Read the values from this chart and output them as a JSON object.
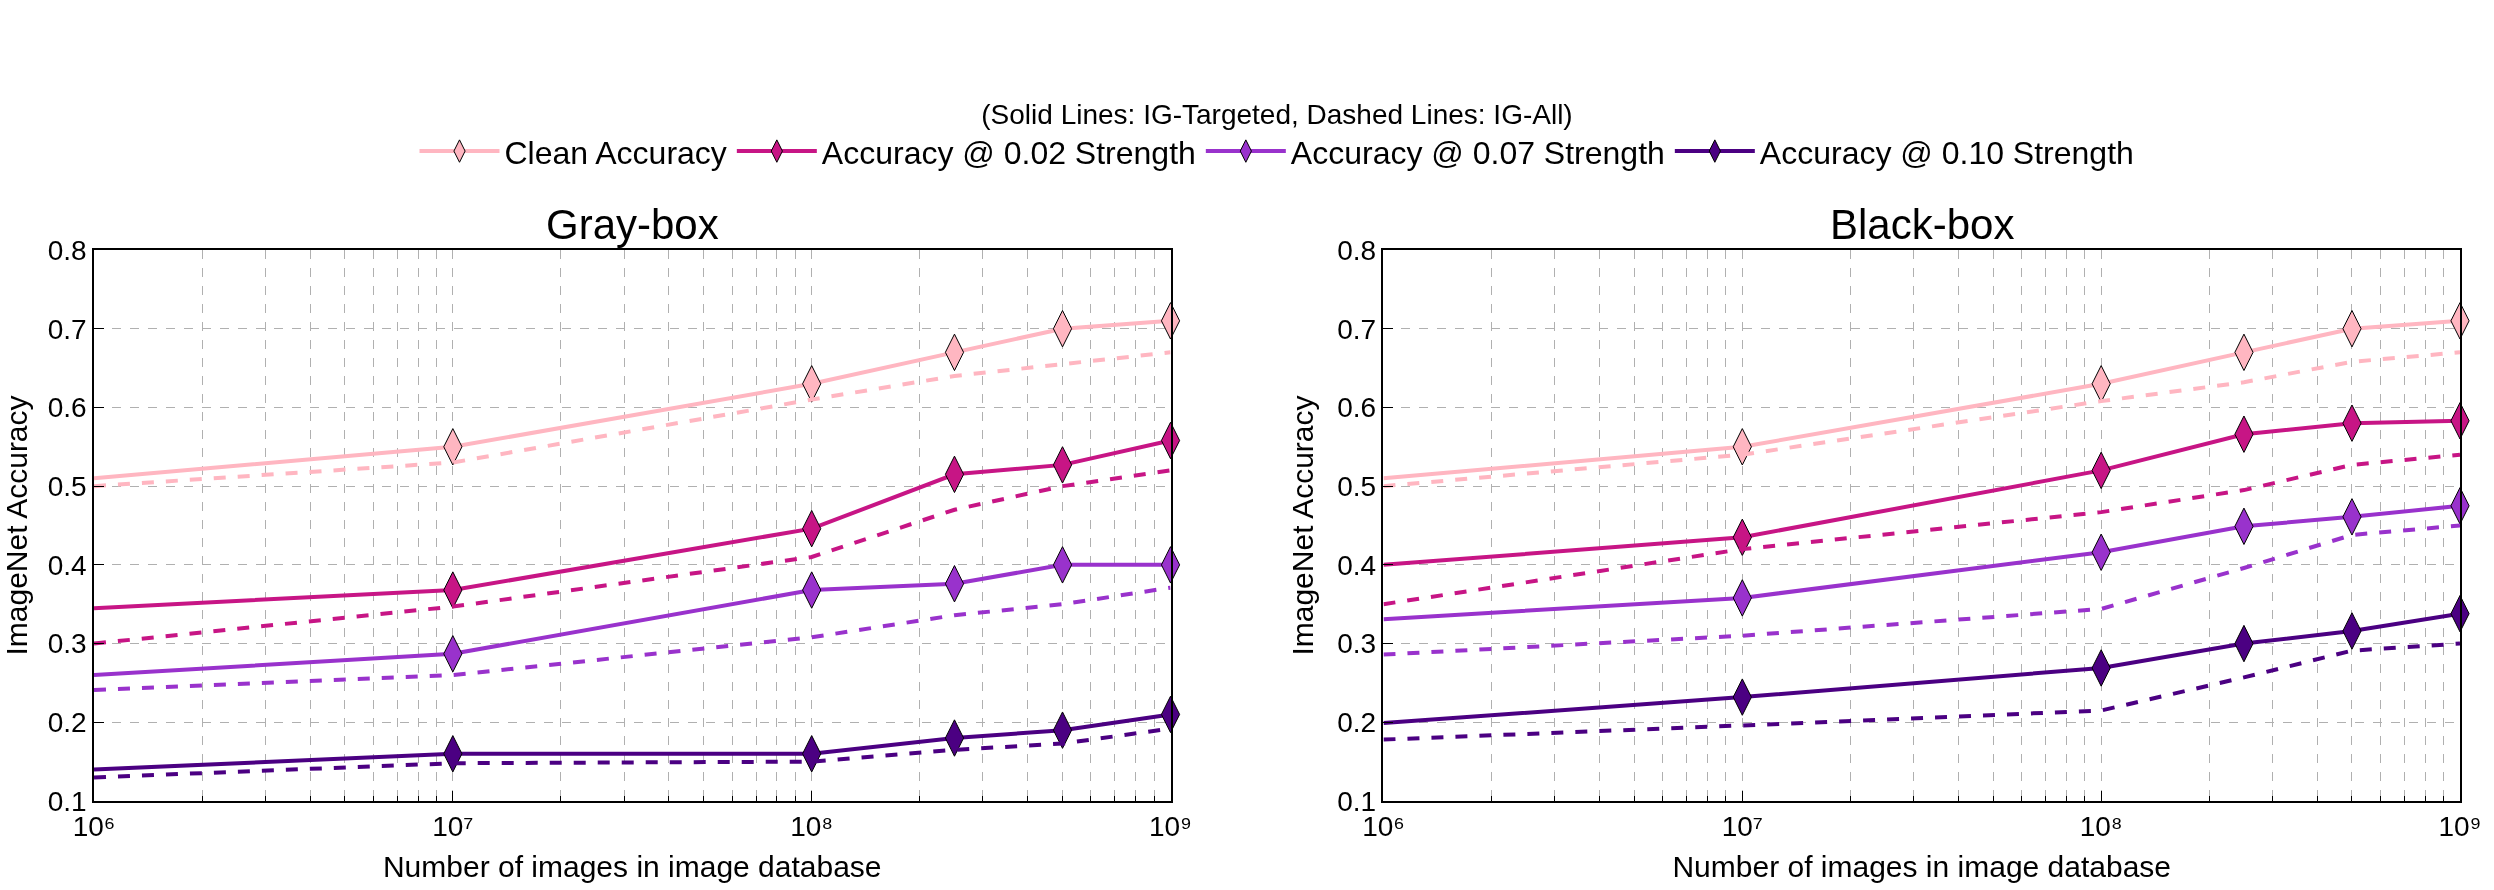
{
  "chart_data": [
    {
      "type": "line",
      "title": "Gray-box",
      "xlabel": "Number of images in image database",
      "ylabel": "ImageNet Accuracy",
      "legend_title": "(Solid Lines: IG-Targeted, Dashed Lines: IG-All)",
      "legend": "top",
      "log": "x",
      "grid": true,
      "marker": "diamond",
      "line_style": "solid",
      "x": [
        1000000,
        10000000,
        100000000,
        250000000,
        500000000,
        1000000000
      ],
      "xlim": [
        1000000,
        1000000000
      ],
      "xticks": [
        {
          "value": 1000000,
          "label": "10⁶"
        },
        {
          "value": 10000000,
          "label": "10⁷"
        },
        {
          "value": 100000000,
          "label": "10⁸"
        },
        {
          "value": 1000000000,
          "label": "10⁹"
        }
      ],
      "ylim": [
        0.1,
        0.8
      ],
      "yticks": [
        0.1,
        0.2,
        0.3,
        0.4,
        0.5,
        0.6,
        0.7,
        0.8
      ],
      "series": [
        {
          "name": "Clean Accuracy",
          "color": "#ffb6c1",
          "values": [
            0.51,
            0.55,
            0.63,
            0.67,
            0.7,
            0.71
          ]
        },
        {
          "name": "Accuracy @ 0.02 Strength",
          "color": "#c71585",
          "values": [
            0.345,
            0.368,
            0.446,
            0.515,
            0.527,
            0.558
          ]
        },
        {
          "name": "Accuracy @ 0.07 Strength",
          "color": "#9932cc",
          "values": [
            0.26,
            0.287,
            0.368,
            0.376,
            0.4,
            0.4
          ]
        },
        {
          "name": "Accuracy @ 0.10 Strength",
          "color": "#4b0082",
          "values": [
            0.14,
            0.16,
            0.16,
            0.18,
            0.19,
            0.21
          ]
        },
        {
          "color": "#ffb6c1",
          "line_style": "dashed",
          "marker": "none",
          "values": [
            0.5,
            0.53,
            0.61,
            0.64,
            0.655,
            0.67
          ]
        },
        {
          "color": "#c71585",
          "line_style": "dashed",
          "marker": "none",
          "values": [
            0.3,
            0.347,
            0.41,
            0.47,
            0.5,
            0.52
          ]
        },
        {
          "color": "#9932cc",
          "line_style": "dashed",
          "marker": "none",
          "values": [
            0.241,
            0.26,
            0.308,
            0.336,
            0.35,
            0.371
          ]
        },
        {
          "color": "#4b0082",
          "line_style": "dashed",
          "marker": "none",
          "values": [
            0.13,
            0.148,
            0.15,
            0.165,
            0.173,
            0.192
          ]
        }
      ]
    },
    {
      "type": "line",
      "title": "Black-box",
      "xlabel": "Number of images in image database",
      "ylabel": "ImageNet Accuracy",
      "log": "x",
      "grid": true,
      "marker": "diamond",
      "line_style": "solid",
      "x": [
        1000000,
        10000000,
        100000000,
        250000000,
        500000000,
        1000000000
      ],
      "xlim": [
        1000000,
        1000000000
      ],
      "xticks": [
        {
          "value": 1000000,
          "label": "10⁶"
        },
        {
          "value": 10000000,
          "label": "10⁷"
        },
        {
          "value": 100000000,
          "label": "10⁸"
        },
        {
          "value": 1000000000,
          "label": "10⁹"
        }
      ],
      "ylim": [
        0.1,
        0.8
      ],
      "yticks": [
        0.1,
        0.2,
        0.3,
        0.4,
        0.5,
        0.6,
        0.7,
        0.8
      ],
      "series": [
        {
          "color": "#ffb6c1",
          "values": [
            0.51,
            0.55,
            0.63,
            0.67,
            0.7,
            0.71
          ]
        },
        {
          "color": "#c71585",
          "values": [
            0.4,
            0.435,
            0.52,
            0.566,
            0.58,
            0.583
          ]
        },
        {
          "color": "#9932cc",
          "values": [
            0.331,
            0.358,
            0.416,
            0.449,
            0.461,
            0.475
          ]
        },
        {
          "color": "#4b0082",
          "values": [
            0.199,
            0.232,
            0.269,
            0.3,
            0.316,
            0.338
          ]
        },
        {
          "color": "#ffb6c1",
          "line_style": "dashed",
          "marker": "none",
          "values": [
            0.5,
            0.54,
            0.608,
            0.632,
            0.658,
            0.67
          ]
        },
        {
          "color": "#c71585",
          "line_style": "dashed",
          "marker": "none",
          "values": [
            0.35,
            0.42,
            0.467,
            0.495,
            0.527,
            0.54
          ]
        },
        {
          "color": "#9932cc",
          "line_style": "dashed",
          "marker": "none",
          "values": [
            0.286,
            0.31,
            0.344,
            0.396,
            0.438,
            0.45
          ]
        },
        {
          "color": "#4b0082",
          "line_style": "dashed",
          "marker": "none",
          "values": [
            0.178,
            0.196,
            0.215,
            0.257,
            0.291,
            0.3
          ]
        }
      ]
    }
  ]
}
